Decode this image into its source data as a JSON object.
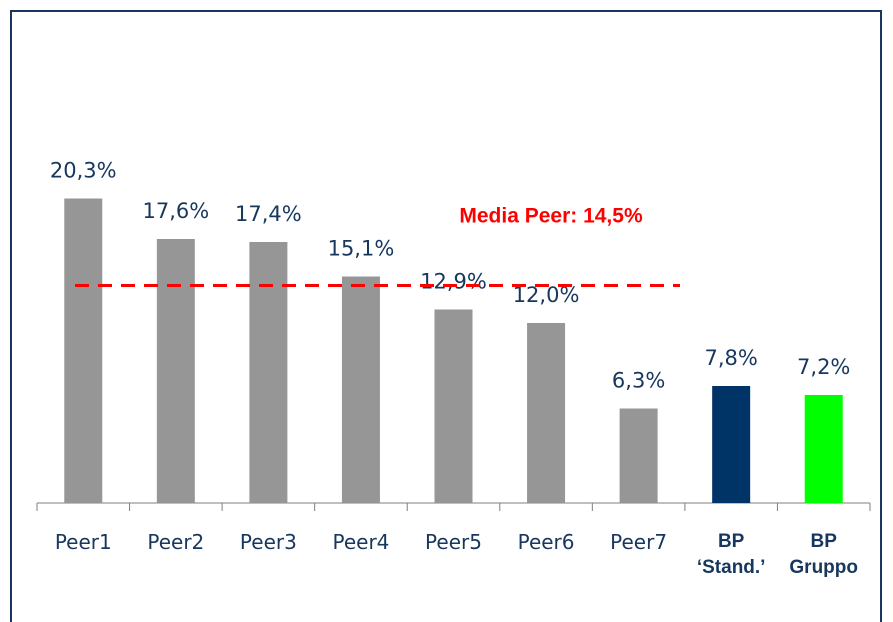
{
  "chart_data": {
    "type": "bar",
    "categories": [
      "Peer1",
      "Peer2",
      "Peer3",
      "Peer4",
      "Peer5",
      "Peer6",
      "Peer7",
      "BP\n‘Stand.’",
      "BP\nGruppo"
    ],
    "values": [
      20.3,
      17.6,
      17.4,
      15.1,
      12.9,
      12.0,
      6.3,
      7.8,
      7.2
    ],
    "value_labels": [
      "20,3%",
      "17,6%",
      "17,4%",
      "15,1%",
      "12,9%",
      "12,0%",
      "6,3%",
      "7,8%",
      "7,2%"
    ],
    "colors": [
      "#969696",
      "#969696",
      "#969696",
      "#969696",
      "#969696",
      "#969696",
      "#969696",
      "#003366",
      "#00ff00"
    ],
    "ylim": [
      0,
      22
    ],
    "reference_line": {
      "value": 14.5,
      "label": "Media Peer: 14,5%",
      "color": "#ff0000"
    }
  }
}
